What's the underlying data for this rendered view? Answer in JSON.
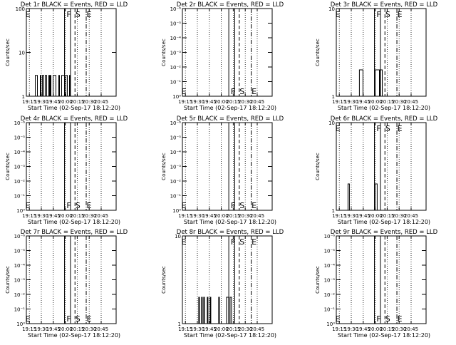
{
  "figure": {
    "background": "#ffffff",
    "event_color": "#000000",
    "lld_color": "#ff0000"
  },
  "chart_data": [
    {
      "type": "line",
      "panel": "1r",
      "title": "Det 1r BLACK = Events, RED = LLD",
      "ylabel": "Counts/sec",
      "xlabel": "Start Time (02-Sep-17 18:12:20)",
      "x_ticks": [
        "19:15",
        "19:30",
        "19:45",
        "20:00",
        "20:15",
        "20:30",
        "20:45"
      ],
      "xlim": [
        1,
        7
      ],
      "x_tick_values": [
        1.2,
        2.0,
        2.8,
        3.6,
        4.4,
        5.2,
        6.0
      ],
      "y_scale": "log",
      "ylim_exp": [
        0,
        2
      ],
      "y_ticks": [
        {
          "e": 0,
          "label": "1"
        },
        {
          "e": 1,
          "label": "10"
        },
        {
          "e": 2,
          "label": "100"
        }
      ],
      "labels": {
        "E": "E",
        "F": "F",
        "S": "S"
      },
      "marks": {
        "E_x": 1.1,
        "F1_x": 3.55,
        "F2_x": 3.95,
        "S_x": 4.25,
        "D_x": 5.0,
        "label_pos": "top"
      },
      "events": {
        "x_start": 1.5,
        "x_end": 4.1,
        "low": 1,
        "high": 3,
        "seed": 11
      }
    },
    {
      "type": "line",
      "panel": "2r",
      "title": "Det 2r BLACK = Events, RED = LLD",
      "ylabel": "Counts/sec",
      "xlabel": "Start Time (02-Sep-17 18:12:20)",
      "x_ticks": [
        "19:15",
        "19:30",
        "19:45",
        "20:00",
        "20:15",
        "20:30",
        "20:45"
      ],
      "xlim": [
        1,
        7
      ],
      "x_tick_values": [
        1.2,
        2.0,
        2.8,
        3.6,
        4.4,
        5.2,
        6.0
      ],
      "y_scale": "log",
      "ylim_exp": [
        0,
        -6
      ],
      "y_ticks": [
        {
          "e": 0,
          "label": "10⁰"
        },
        {
          "e": -1,
          "label": "10⁻¹"
        },
        {
          "e": -2,
          "label": "10⁻²"
        },
        {
          "e": -3,
          "label": "10⁻³"
        },
        {
          "e": -4,
          "label": "10⁻⁴"
        },
        {
          "e": -5,
          "label": "10⁻⁵"
        },
        {
          "e": -6,
          "label": "10⁻⁶"
        }
      ],
      "labels": {
        "E": "E",
        "F": "F",
        "S": "S"
      },
      "marks": {
        "E_x": 1.1,
        "F1_x": 4.1,
        "F2_x": 4.5,
        "S_x": 4.8,
        "D_x": 5.6,
        "label_pos": "bottom"
      },
      "events": null
    },
    {
      "type": "line",
      "panel": "3r",
      "title": "Det 3r BLACK = Events, RED = LLD",
      "ylabel": "Counts/sec",
      "xlabel": "Start Time (02-Sep-17 18:12:20)",
      "x_ticks": [
        "19:15",
        "19:30",
        "19:45",
        "20:00",
        "20:15",
        "20:30",
        "20:45"
      ],
      "xlim": [
        1,
        7
      ],
      "x_tick_values": [
        1.2,
        2.0,
        2.8,
        3.6,
        4.4,
        5.2,
        6.0
      ],
      "y_scale": "log",
      "ylim_exp": [
        0,
        1
      ],
      "y_ticks": [
        {
          "e": 0,
          "label": "1"
        },
        {
          "e": 1,
          "label": "10"
        }
      ],
      "labels": {
        "E": "E",
        "F": "F",
        "S": "S"
      },
      "marks": {
        "E_x": 1.1,
        "F1_x": 3.55,
        "F2_x": 3.95,
        "S_x": 4.25,
        "D_x": 5.05,
        "label_pos": "top"
      },
      "events": {
        "x_start": 2.45,
        "x_end": 4.1,
        "low": 1,
        "high": 2,
        "seed": 23
      }
    },
    {
      "type": "line",
      "panel": "4r",
      "title": "Det 4r BLACK = Events, RED = LLD",
      "ylabel": "Counts/sec",
      "xlabel": "Start Time (02-Sep-17 18:12:20)",
      "x_ticks": [
        "19:15",
        "19:30",
        "19:45",
        "20:00",
        "20:15",
        "20:30",
        "20:45"
      ],
      "xlim": [
        1,
        7
      ],
      "x_tick_values": [
        1.2,
        2.0,
        2.8,
        3.6,
        4.4,
        5.2,
        6.0
      ],
      "y_scale": "log",
      "ylim_exp": [
        0,
        -6
      ],
      "y_ticks": [
        {
          "e": 0,
          "label": "10⁰"
        },
        {
          "e": -1,
          "label": "10⁻¹"
        },
        {
          "e": -2,
          "label": "10⁻²"
        },
        {
          "e": -3,
          "label": "10⁻³"
        },
        {
          "e": -4,
          "label": "10⁻⁴"
        },
        {
          "e": -5,
          "label": "10⁻⁵"
        },
        {
          "e": -6,
          "label": "10⁻⁶"
        }
      ],
      "labels": {
        "E": "E",
        "F": "F",
        "S": "S"
      },
      "marks": {
        "E_x": 1.1,
        "F1_x": 3.55,
        "F2_x": 3.95,
        "S_x": 4.25,
        "D_x": 5.0,
        "label_pos": "bottom"
      },
      "events": null
    },
    {
      "type": "line",
      "panel": "5r",
      "title": "Det 5r BLACK = Events, RED = LLD",
      "ylabel": "Counts/sec",
      "xlabel": "Start Time (02-Sep-17 18:12:20)",
      "x_ticks": [
        "19:15",
        "19:30",
        "19:45",
        "20:00",
        "20:15",
        "20:30",
        "20:45"
      ],
      "xlim": [
        1,
        7
      ],
      "x_tick_values": [
        1.2,
        2.0,
        2.8,
        3.6,
        4.4,
        5.2,
        6.0
      ],
      "y_scale": "log",
      "ylim_exp": [
        0,
        -6
      ],
      "y_ticks": [
        {
          "e": 0,
          "label": "10⁰"
        },
        {
          "e": -1,
          "label": "10⁻¹"
        },
        {
          "e": -2,
          "label": "10⁻²"
        },
        {
          "e": -3,
          "label": "10⁻³"
        },
        {
          "e": -4,
          "label": "10⁻⁴"
        },
        {
          "e": -5,
          "label": "10⁻⁵"
        },
        {
          "e": -6,
          "label": "10⁻⁶"
        }
      ],
      "labels": {
        "E": "E",
        "F": "F",
        "S": "S"
      },
      "marks": {
        "E_x": 1.1,
        "F1_x": 4.1,
        "F2_x": 4.5,
        "S_x": 4.8,
        "D_x": 5.6,
        "label_pos": "bottom"
      },
      "events": null
    },
    {
      "type": "line",
      "panel": "6r",
      "title": "Det 6r BLACK = Events, RED = LLD",
      "ylabel": "Counts/sec",
      "xlabel": "Start Time (02-Sep-17 18:12:20)",
      "x_ticks": [
        "19:15",
        "19:30",
        "19:45",
        "20:00",
        "20:15",
        "20:30",
        "20:45"
      ],
      "xlim": [
        1,
        7
      ],
      "x_tick_values": [
        1.2,
        2.0,
        2.8,
        3.6,
        4.4,
        5.2,
        6.0
      ],
      "y_scale": "log",
      "ylim_exp": [
        0,
        1
      ],
      "y_ticks": [
        {
          "e": 0,
          "label": "1"
        },
        {
          "e": 1,
          "label": "10"
        }
      ],
      "labels": {
        "E": "E",
        "F": "F",
        "S": "S"
      },
      "marks": {
        "E_x": 1.1,
        "F1_x": 3.55,
        "F2_x": 3.95,
        "S_x": 4.25,
        "D_x": 5.05,
        "label_pos": "top"
      },
      "events": {
        "x_start": 1.35,
        "x_end": 4.1,
        "low": 1,
        "high": 2,
        "seed": 37,
        "gap": [
          2.25,
          3.5
        ]
      }
    },
    {
      "type": "line",
      "panel": "7r",
      "title": "Det 7r BLACK = Events, RED = LLD",
      "ylabel": "Counts/sec",
      "xlabel": "Start Time (02-Sep-17 18:12:20)",
      "x_ticks": [
        "19:15",
        "19:30",
        "19:45",
        "20:00",
        "20:15",
        "20:30",
        "20:45"
      ],
      "xlim": [
        1,
        7
      ],
      "x_tick_values": [
        1.2,
        2.0,
        2.8,
        3.6,
        4.4,
        5.2,
        6.0
      ],
      "y_scale": "log",
      "ylim_exp": [
        0,
        -6
      ],
      "y_ticks": [
        {
          "e": 0,
          "label": "10⁰"
        },
        {
          "e": -1,
          "label": "10⁻¹"
        },
        {
          "e": -2,
          "label": "10⁻²"
        },
        {
          "e": -3,
          "label": "10⁻³"
        },
        {
          "e": -4,
          "label": "10⁻⁴"
        },
        {
          "e": -5,
          "label": "10⁻⁵"
        },
        {
          "e": -6,
          "label": "10⁻⁶"
        }
      ],
      "labels": {
        "E": "E",
        "F": "F",
        "S": "S"
      },
      "marks": {
        "E_x": 1.1,
        "F1_x": 3.55,
        "F2_x": 3.95,
        "S_x": 4.25,
        "D_x": 5.0,
        "label_pos": "bottom"
      },
      "events": null
    },
    {
      "type": "line",
      "panel": "8r",
      "title": "Det 8r BLACK = Events, RED = LLD",
      "ylabel": "Counts/sec",
      "xlabel": "Start Time (02-Sep-17 18:12:20)",
      "x_ticks": [
        "19:15",
        "19:30",
        "19:45",
        "20:00",
        "20:15",
        "20:30",
        "20:45"
      ],
      "xlim": [
        1,
        7
      ],
      "x_tick_values": [
        1.2,
        2.0,
        2.8,
        3.6,
        4.4,
        5.2,
        6.0
      ],
      "y_scale": "log",
      "ylim_exp": [
        0,
        1
      ],
      "y_ticks": [
        {
          "e": 0,
          "label": "1"
        },
        {
          "e": 1,
          "label": "10"
        }
      ],
      "labels": {
        "E": "E",
        "F": "F",
        "S": "S"
      },
      "marks": {
        "E_x": 1.1,
        "F1_x": 4.1,
        "F2_x": 4.5,
        "S_x": 4.8,
        "D_x": 5.6,
        "label_pos": "top"
      },
      "events": {
        "x_start": 1.95,
        "x_end": 4.55,
        "low": 1,
        "high": 2,
        "seed": 53
      }
    },
    {
      "type": "line",
      "panel": "9r",
      "title": "Det 9r BLACK = Events, RED = LLD",
      "ylabel": "Counts/sec",
      "xlabel": "Start Time (02-Sep-17 18:12:20)",
      "x_ticks": [
        "19:15",
        "19:30",
        "19:45",
        "20:00",
        "20:15",
        "20:30",
        "20:45"
      ],
      "xlim": [
        1,
        7
      ],
      "x_tick_values": [
        1.2,
        2.0,
        2.8,
        3.6,
        4.4,
        5.2,
        6.0
      ],
      "y_scale": "log",
      "ylim_exp": [
        0,
        -6
      ],
      "y_ticks": [
        {
          "e": 0,
          "label": "10⁰"
        },
        {
          "e": -1,
          "label": "10⁻¹"
        },
        {
          "e": -2,
          "label": "10⁻²"
        },
        {
          "e": -3,
          "label": "10⁻³"
        },
        {
          "e": -4,
          "label": "10⁻⁴"
        },
        {
          "e": -5,
          "label": "10⁻⁵"
        },
        {
          "e": -6,
          "label": "10⁻⁶"
        }
      ],
      "labels": {
        "E": "E",
        "F": "F",
        "S": "S"
      },
      "marks": {
        "E_x": 1.1,
        "F1_x": 3.55,
        "F2_x": 3.95,
        "S_x": 4.25,
        "D_x": 5.05,
        "label_pos": "bottom"
      },
      "events": null
    }
  ]
}
